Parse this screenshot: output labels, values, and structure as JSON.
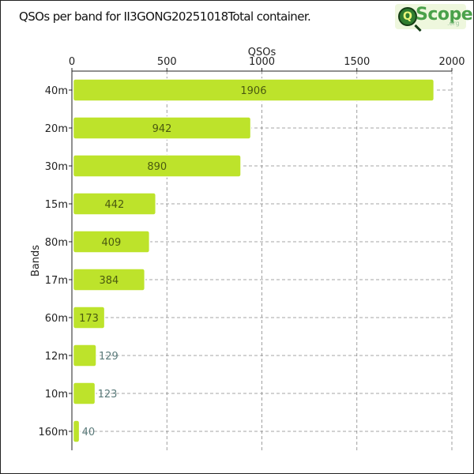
{
  "title": "QSOs per band for II3GONG20251018Total container.",
  "logo": {
    "text": "Scope",
    "sub": ".org",
    "q": "Q"
  },
  "colors": {
    "bar": "#bde32b",
    "bar_stroke": "#ffffff",
    "grid": "#888888",
    "label_inside": "#4a5a10",
    "label_outside": "#5a7a7a"
  },
  "chart_data": {
    "type": "bar",
    "orientation": "horizontal",
    "title": "QSOs per band for II3GONG20251018Total container.",
    "xlabel": "QSOs",
    "ylabel": "Bands",
    "xlim": [
      0,
      2000
    ],
    "xticks": [
      0,
      500,
      1000,
      1500,
      2000
    ],
    "grid": true,
    "categories": [
      "40m",
      "20m",
      "30m",
      "15m",
      "80m",
      "17m",
      "60m",
      "12m",
      "10m",
      "160m"
    ],
    "values": [
      1906,
      942,
      890,
      442,
      409,
      384,
      173,
      129,
      123,
      40
    ]
  }
}
